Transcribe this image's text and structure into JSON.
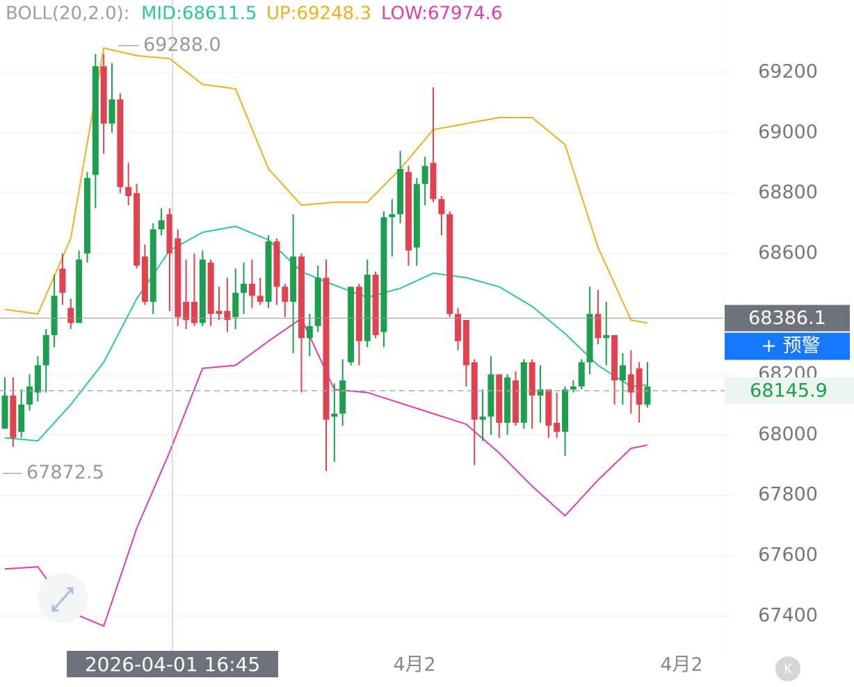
{
  "chart_data": {
    "type": "candlestick",
    "indicator": {
      "name": "BOLL(20,2.0):",
      "mid": "MID:68611.5",
      "up": "UP:69248.3",
      "low": "LOW:67974.6"
    },
    "ylim": [
      67285,
      69439
    ],
    "yticks": [
      67400,
      67600,
      67800,
      68000,
      68200,
      68400,
      68600,
      68800,
      69000,
      69200
    ],
    "grid": true,
    "up_color": "#1e9e4f",
    "down_color": "#e0424f",
    "candles": {
      "open": [
        68020,
        68130,
        68010,
        68100,
        68140,
        68230,
        68330,
        68550,
        68420,
        68370,
        68600,
        68860,
        69220,
        69030,
        69110,
        68820,
        68800,
        68590,
        68440,
        68680,
        68730,
        68650,
        68440,
        68440,
        68370,
        68570,
        68410,
        68410,
        68390,
        68470,
        68500,
        68460,
        68440,
        68640,
        68490,
        68440,
        68590,
        68320,
        68360,
        68520,
        68060,
        68070,
        68240,
        68490,
        68310,
        68530,
        68340,
        68720,
        68730,
        68870,
        68620,
        68830,
        68900,
        68780,
        68730,
        68400,
        68380,
        68240,
        68050,
        68060,
        68200,
        68040,
        68180,
        68040,
        68240,
        68130,
        68150,
        68040,
        68010,
        68150,
        68160,
        68240,
        68400,
        68320,
        68330,
        68180,
        68200,
        68220,
        68100
      ],
      "high": [
        68190,
        68190,
        68150,
        68200,
        68260,
        68350,
        68530,
        68600,
        68450,
        68610,
        68870,
        69260,
        69260,
        69230,
        69130,
        68900,
        68830,
        68630,
        68700,
        68750,
        68750,
        68680,
        68580,
        68600,
        68610,
        68580,
        68490,
        68520,
        68550,
        68570,
        68580,
        68520,
        68660,
        68650,
        68500,
        68730,
        68600,
        68400,
        68560,
        68580,
        68170,
        68250,
        68490,
        68500,
        68580,
        68540,
        68740,
        68780,
        68940,
        68890,
        68850,
        68920,
        69150,
        68790,
        68740,
        68420,
        68380,
        68250,
        68150,
        68260,
        68200,
        68200,
        68210,
        68250,
        68250,
        68230,
        68150,
        68140,
        68160,
        68180,
        68250,
        68490,
        68480,
        68440,
        68330,
        68270,
        68280,
        68240,
        68240
      ],
      "low": [
        68020,
        67960,
        67990,
        68080,
        68110,
        68140,
        68290,
        68430,
        68350,
        68370,
        68570,
        68750,
        68930,
        69000,
        68800,
        68760,
        68550,
        68430,
        68400,
        68660,
        68410,
        68360,
        68350,
        68360,
        68360,
        68360,
        68380,
        68340,
        68350,
        68400,
        68420,
        68430,
        68420,
        68430,
        68390,
        68270,
        68140,
        68260,
        68340,
        67880,
        67910,
        68030,
        68230,
        68230,
        68290,
        68320,
        68290,
        68590,
        68700,
        68560,
        68560,
        68760,
        68770,
        68660,
        68390,
        68280,
        68160,
        67900,
        67980,
        68000,
        67990,
        68000,
        68030,
        68020,
        68020,
        68040,
        67990,
        67990,
        67930,
        68140,
        68150,
        68200,
        68300,
        68230,
        68100,
        68100,
        68070,
        68040,
        68090
      ],
      "close": [
        68130,
        67990,
        68100,
        68160,
        68230,
        68330,
        68460,
        68470,
        68370,
        68580,
        68850,
        69220,
        69030,
        69110,
        68820,
        68790,
        68560,
        68440,
        68680,
        68710,
        68600,
        68390,
        68380,
        68370,
        68580,
        68400,
        68400,
        68380,
        68470,
        68500,
        68460,
        68440,
        68640,
        68490,
        68440,
        68590,
        68320,
        68360,
        68520,
        68050,
        68070,
        68180,
        68490,
        68310,
        68530,
        68330,
        68720,
        68730,
        68880,
        68610,
        68830,
        68890,
        68780,
        68730,
        68400,
        68310,
        68230,
        68050,
        68060,
        68200,
        68040,
        68190,
        68040,
        68240,
        68130,
        68150,
        68030,
        68010,
        68150,
        68160,
        68240,
        68400,
        68320,
        68330,
        68180,
        68230,
        68140,
        68100,
        68160
      ]
    },
    "bands": {
      "x": [
        0,
        4,
        8,
        12,
        16,
        20,
        24,
        28,
        32,
        36,
        40,
        44,
        48,
        52,
        56,
        60,
        64,
        68,
        72,
        76,
        78
      ],
      "series": [
        {
          "name": "UP",
          "color": "#ebb21e",
          "values": [
            68415,
            68400,
            68650,
            69280,
            69255,
            69245,
            69160,
            69145,
            68880,
            68760,
            68770,
            68770,
            68880,
            69010,
            69030,
            69050,
            69050,
            68960,
            68620,
            68380,
            68370
          ]
        },
        {
          "name": "MID",
          "color": "#2ec4a0",
          "values": [
            67990,
            67980,
            68100,
            68240,
            68450,
            68610,
            68670,
            68690,
            68645,
            68540,
            68495,
            68455,
            68485,
            68535,
            68520,
            68490,
            68425,
            68335,
            68230,
            68160,
            68165
          ]
        },
        {
          "name": "LOW",
          "color": "#d83fb4",
          "values": [
            67556,
            67563,
            67413,
            67367,
            67690,
            67943,
            68220,
            68230,
            68310,
            68385,
            68150,
            68140,
            68105,
            68070,
            68035,
            67940,
            67830,
            67732,
            67850,
            67955,
            67966
          ]
        }
      ]
    },
    "max_label": "69288.0",
    "max_value": 69288.0,
    "min_label": "67872.5",
    "min_value": 67872.5,
    "crosshair": {
      "value": 68386.1,
      "label": "68386.1",
      "time": "2026-04-01 16:45"
    },
    "alert_button": "+ 预警",
    "last_price": {
      "value": 68145.9,
      "label": "68145.9"
    },
    "x_labels": [
      "4月2",
      "4月2"
    ]
  }
}
